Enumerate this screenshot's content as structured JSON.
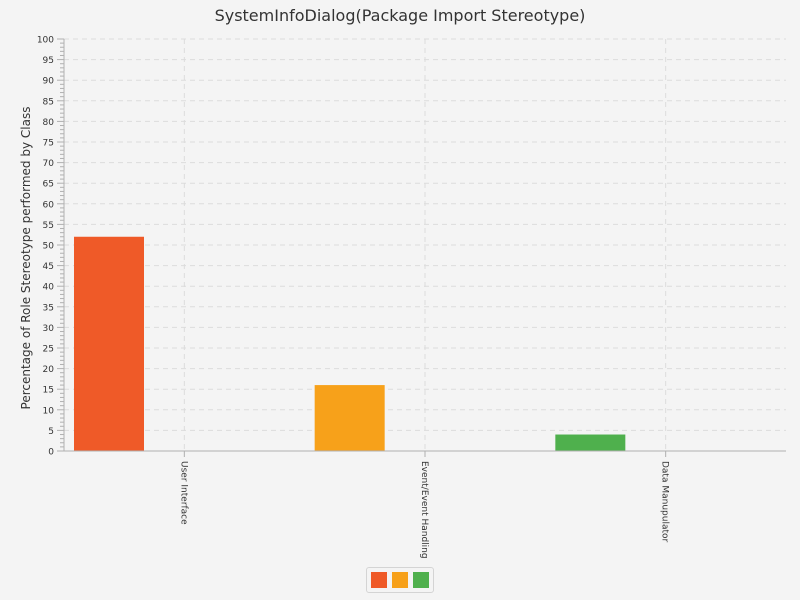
{
  "chart_data": {
    "type": "bar",
    "title": "SystemInfoDialog(Package Import Stereotype)",
    "xlabel": "",
    "ylabel": "Percentage of Role Stereotype performed by Class",
    "categories": [
      "User Interface",
      "Event/Event Handling",
      "Data Manupulator"
    ],
    "values": [
      52,
      16,
      4
    ],
    "ylim": [
      0,
      100
    ],
    "y_ticks": [
      0,
      5,
      10,
      15,
      20,
      25,
      30,
      35,
      40,
      45,
      50,
      55,
      60,
      65,
      70,
      75,
      80,
      85,
      90,
      95,
      100
    ],
    "colors": [
      "#ef5a28",
      "#f7a11a",
      "#4fb04d"
    ],
    "grid": true,
    "legend_position": "bottom"
  }
}
